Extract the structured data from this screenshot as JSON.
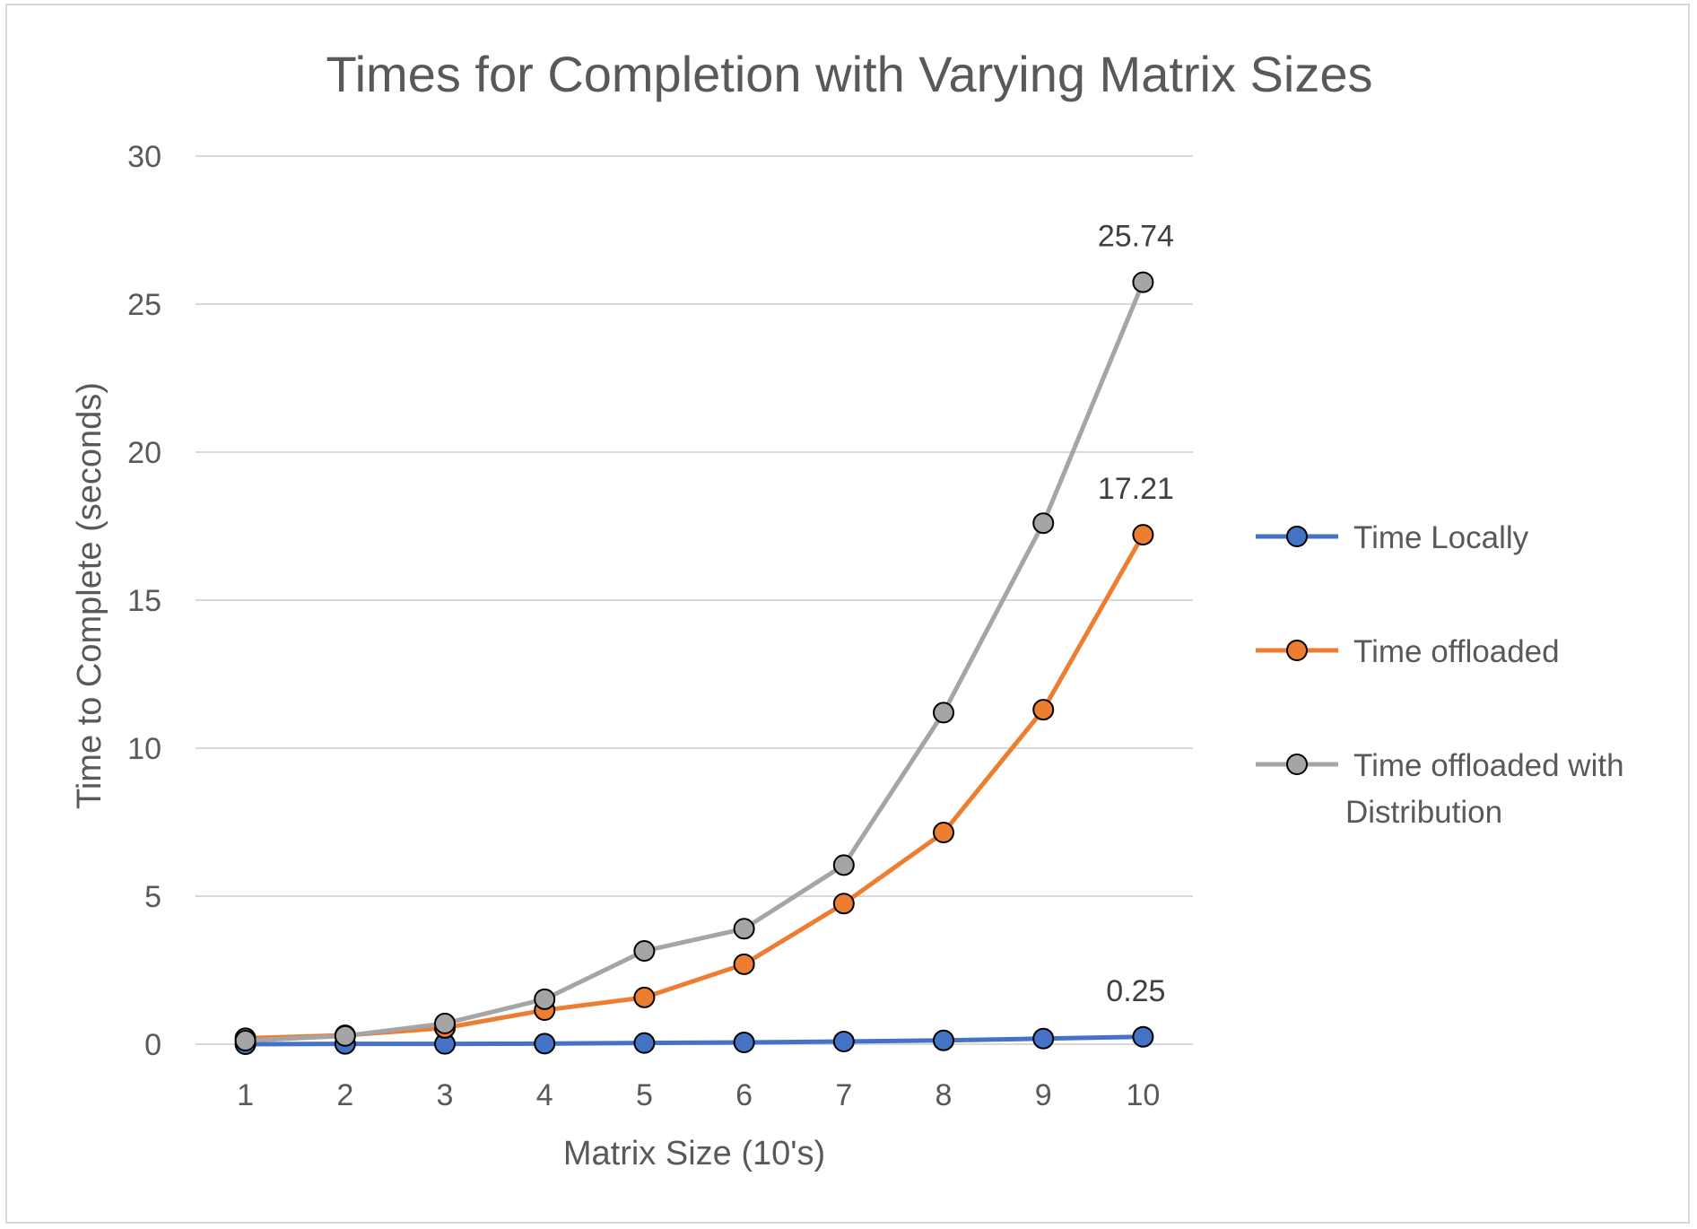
{
  "chart_data": {
    "type": "line",
    "title": "Times for Completion with Varying Matrix Sizes",
    "xlabel": "Matrix Size (10's)",
    "ylabel": "Time to Complete (seconds)",
    "categories": [
      "1",
      "2",
      "3",
      "4",
      "5",
      "6",
      "7",
      "8",
      "9",
      "10"
    ],
    "ylim": [
      0,
      30
    ],
    "yticks": [
      "0",
      "5",
      "10",
      "15",
      "20",
      "25",
      "30"
    ],
    "grid": true,
    "legend_position": "right",
    "series": [
      {
        "name": "Time Locally",
        "color": "#4472c4",
        "values": [
          0.0,
          0.01,
          0.01,
          0.02,
          0.04,
          0.06,
          0.09,
          0.13,
          0.19,
          0.25
        ],
        "last_label": "0.25"
      },
      {
        "name": "Time offloaded",
        "color": "#ed7d31",
        "values": [
          0.2,
          0.3,
          0.55,
          1.15,
          1.58,
          2.7,
          4.75,
          7.15,
          11.3,
          17.21
        ],
        "last_label": "17.21"
      },
      {
        "name": "Time offloaded with Distribution",
        "legend_lines": [
          "Time offloaded with",
          "Distribution"
        ],
        "color": "#a5a5a5",
        "values": [
          0.12,
          0.28,
          0.7,
          1.52,
          3.15,
          3.9,
          6.05,
          11.2,
          17.6,
          25.74
        ],
        "last_label": "25.74"
      }
    ]
  }
}
